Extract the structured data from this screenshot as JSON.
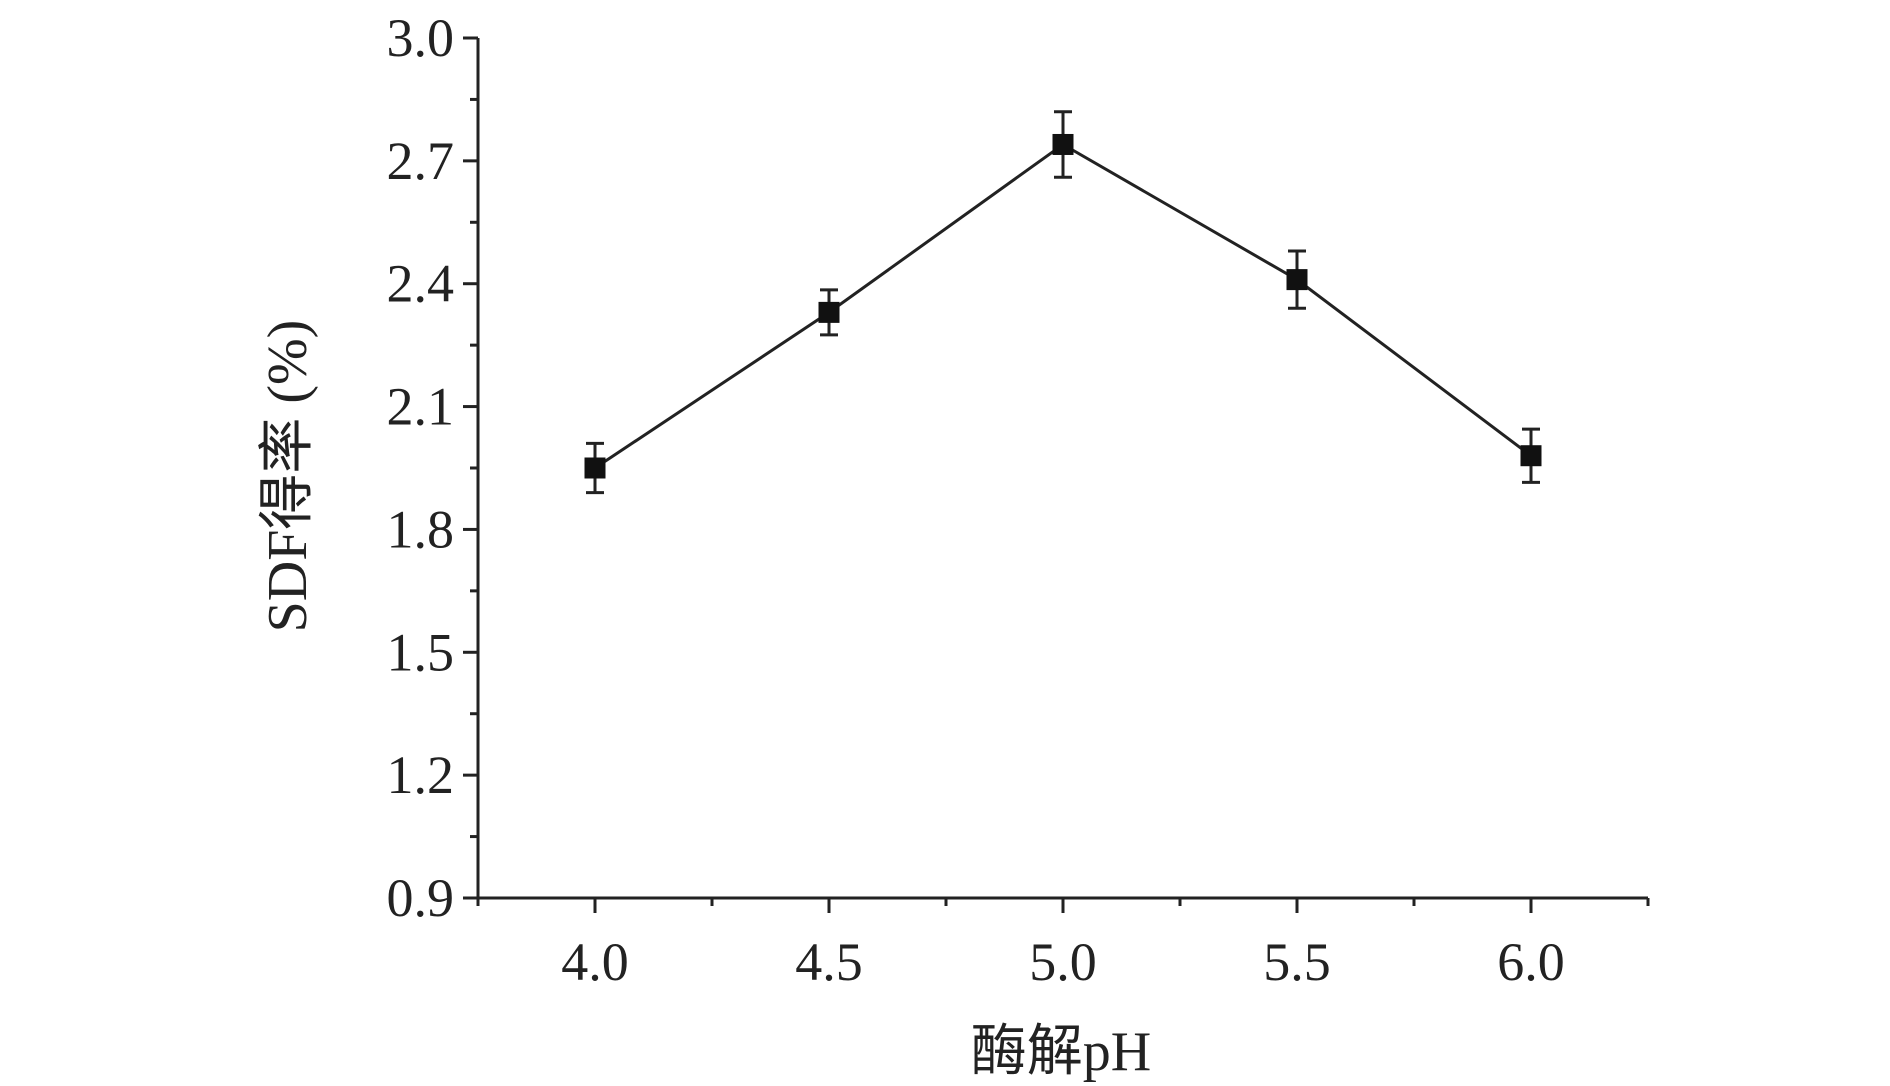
{
  "chart_data": {
    "type": "line",
    "title": "",
    "xlabel": "酶解pH",
    "ylabel": "SDF得率 (%)",
    "x": [
      4.0,
      4.5,
      5.0,
      5.5,
      6.0
    ],
    "x_tick_labels": [
      "4.0",
      "4.5",
      "5.0",
      "5.5",
      "6.0"
    ],
    "xlim": [
      3.75,
      6.25
    ],
    "y_tick_values": [
      0.9,
      1.2,
      1.5,
      1.8,
      2.1,
      2.4,
      2.7,
      3.0
    ],
    "y_tick_labels": [
      "0.9",
      "1.2",
      "1.5",
      "1.8",
      "2.1",
      "2.4",
      "2.7",
      "3.0"
    ],
    "ylim": [
      0.9,
      3.0
    ],
    "grid": false,
    "series": [
      {
        "values": [
          1.95,
          2.33,
          2.74,
          2.41,
          1.98
        ],
        "errors": [
          0.06,
          0.055,
          0.08,
          0.07,
          0.065
        ],
        "color": "#111111",
        "marker": "square"
      }
    ]
  }
}
